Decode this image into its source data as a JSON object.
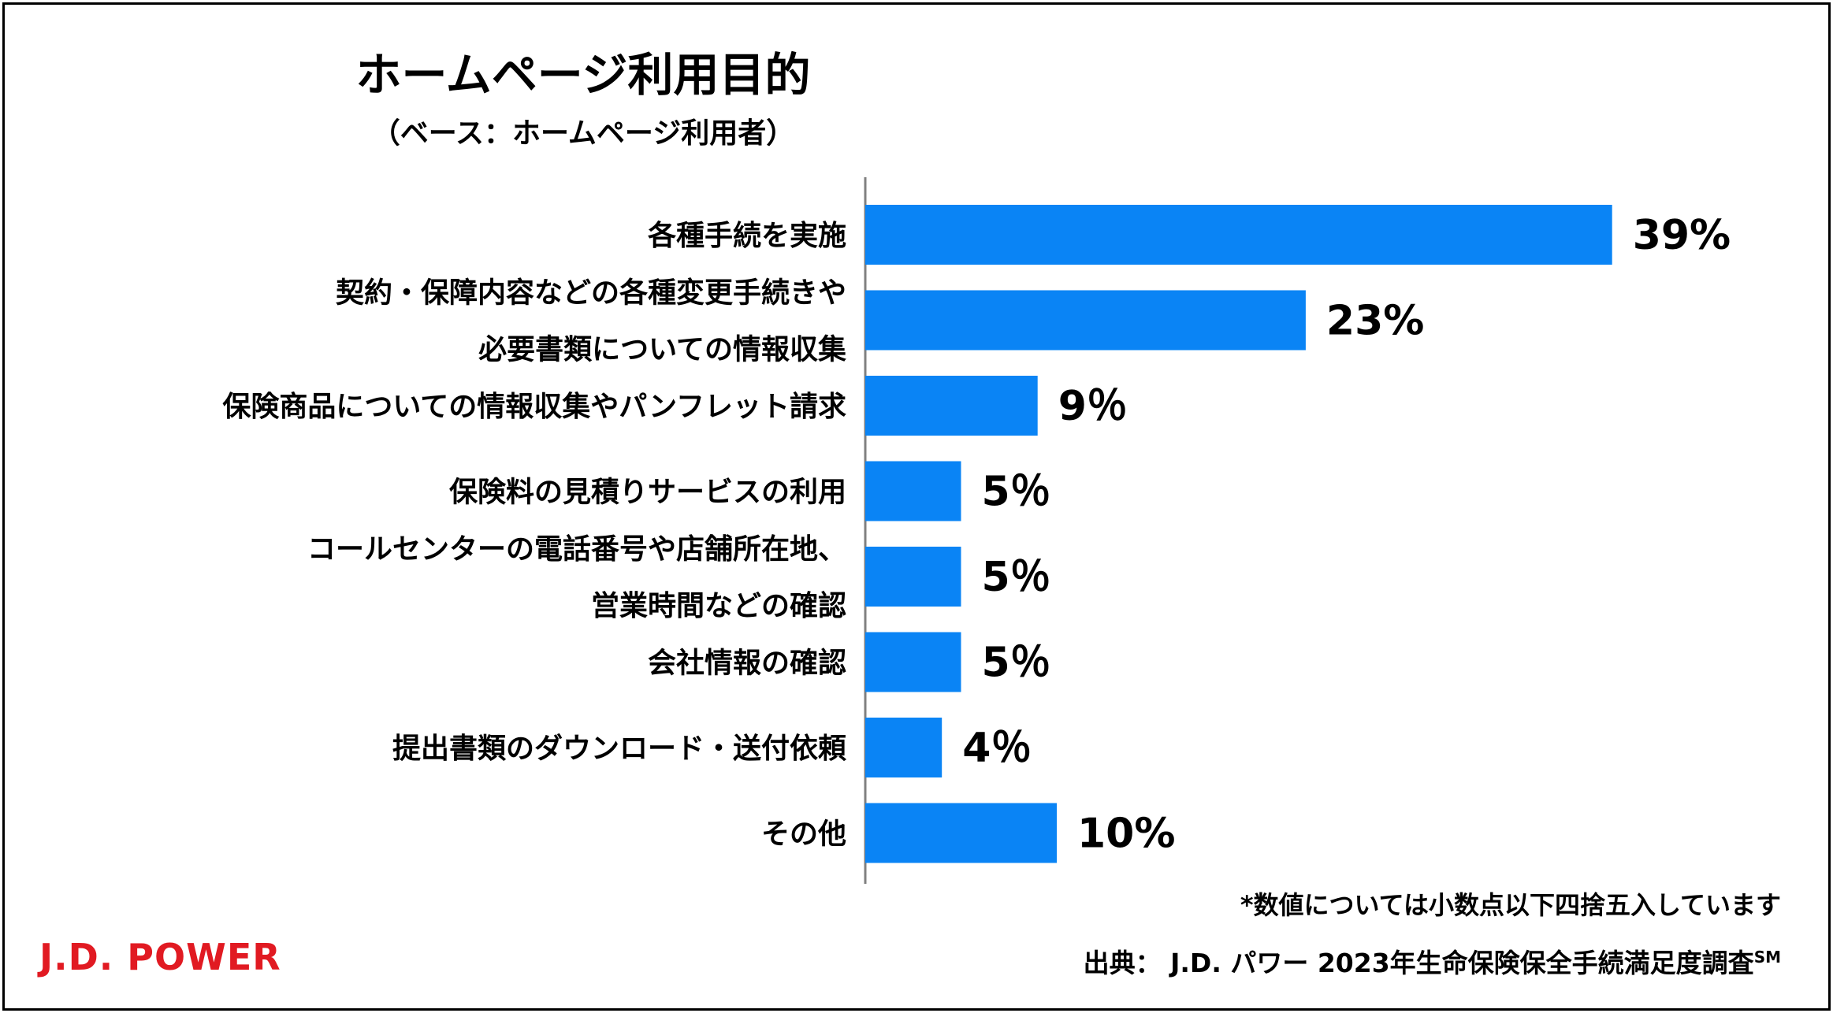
{
  "chart_data": {
    "type": "bar",
    "orientation": "horizontal",
    "title": "ホームページ利用目的",
    "subtitle": "（ベース：ホームページ利用者）",
    "categories": [
      [
        "各種手続を実施"
      ],
      [
        "契約・保障内容などの各種変更手続きや",
        "必要書類についての情報収集"
      ],
      [
        "保険商品についての情報収集やパンフレット請求"
      ],
      [
        "保険料の見積りサービスの利用"
      ],
      [
        "コールセンターの電話番号や店舗所在地、",
        "営業時間などの確認"
      ],
      [
        "会社情報の確認"
      ],
      [
        "提出書類のダウンロード・送付依頼"
      ],
      [
        "その他"
      ]
    ],
    "values": [
      39,
      23,
      9,
      5,
      5,
      5,
      4,
      10
    ],
    "value_labels": [
      "39%",
      "23%",
      "9％",
      "5％",
      "5％",
      "5％",
      "4％",
      "10%"
    ],
    "unit": "%",
    "bar_color": "#0a84f5",
    "grid": false,
    "legend": "none"
  },
  "note": "*数値については小数点以下四捨五入しています",
  "source": {
    "prefix": "出典：  J.D. パワー 2023年生命保険保全手続満足度調査",
    "mark": "SM"
  },
  "logo": "J.D. POWER",
  "colors": {
    "bar": "#0a84f5",
    "logo": "#e11a22",
    "axis": "#808080"
  }
}
